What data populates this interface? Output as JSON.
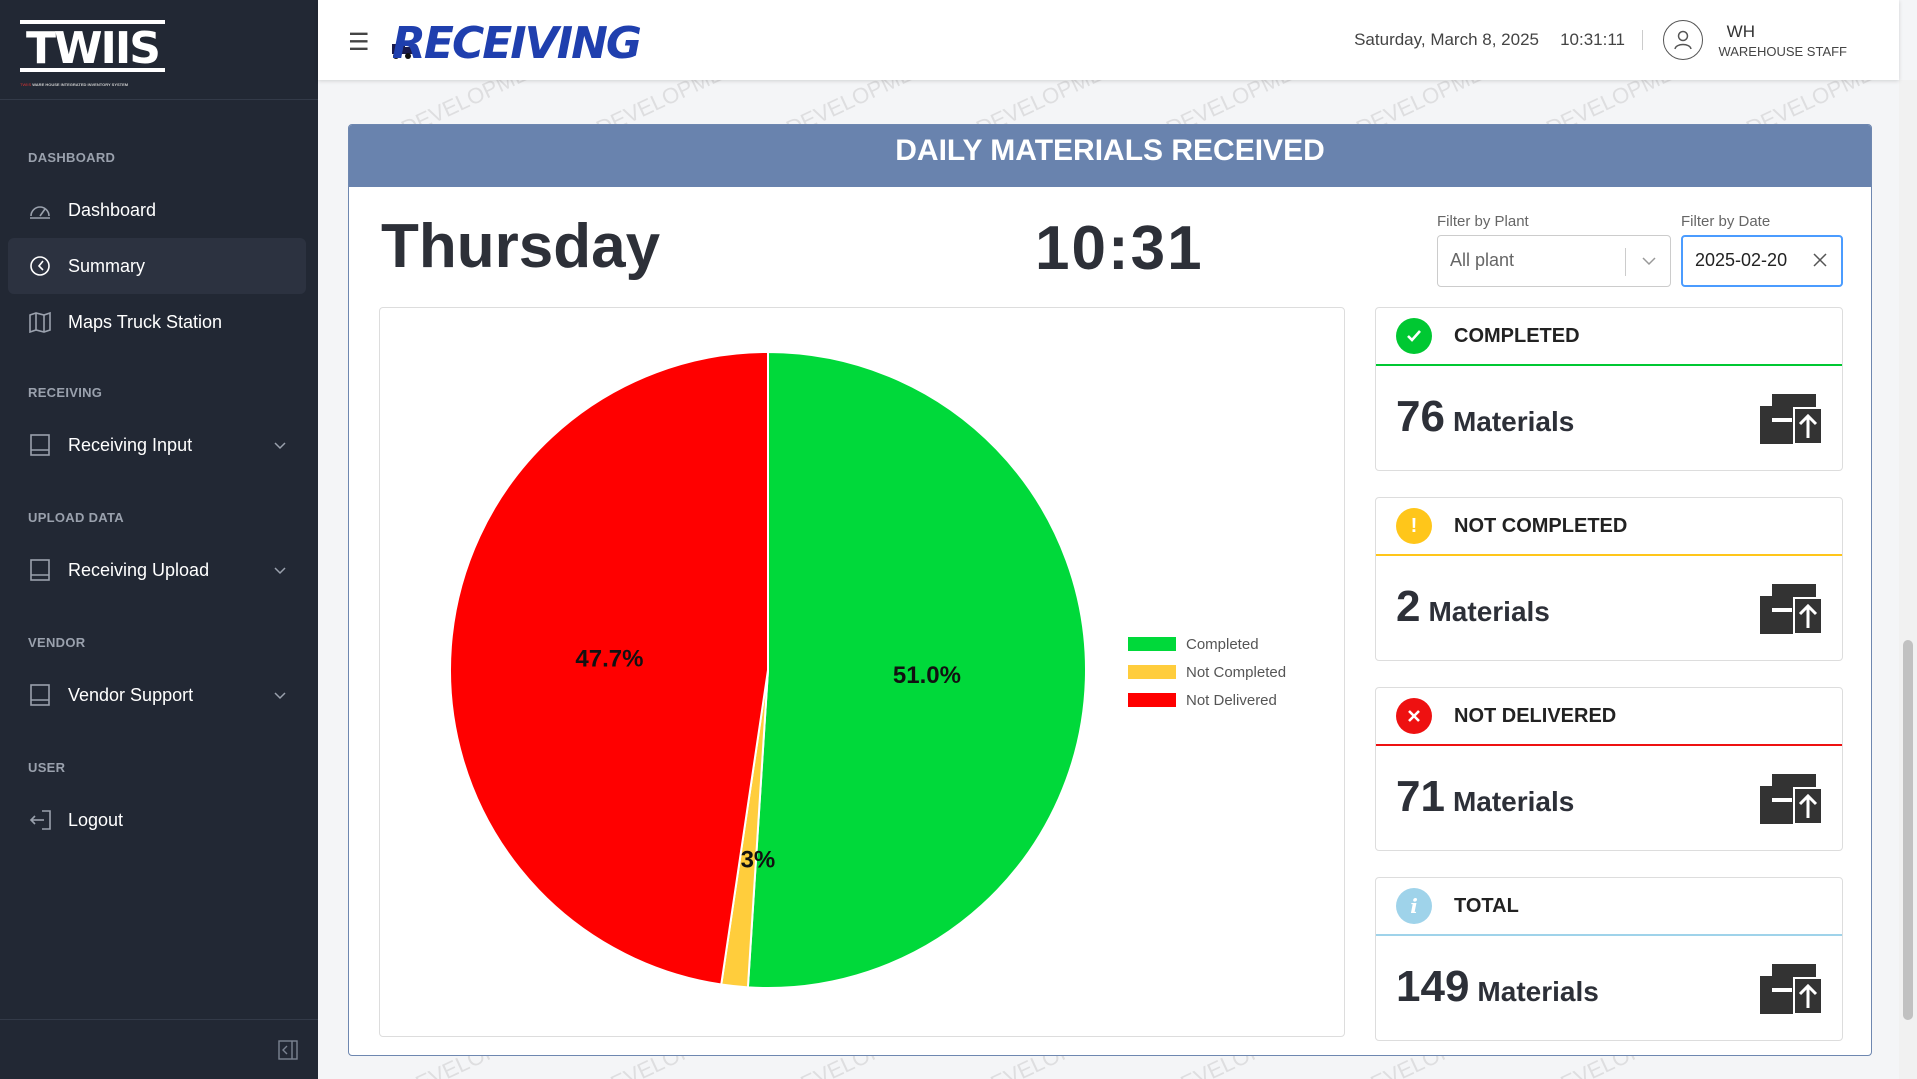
{
  "sidebar": {
    "logo_text": "TWIIS",
    "logo_subtitle_red": "TWIIS",
    "logo_subtitle": "WARE HOUSE INTEGRATED INVENTORY SYSTEM",
    "sections": [
      {
        "title": "DASHBOARD",
        "items": [
          {
            "label": "Dashboard",
            "icon": "gauge-icon"
          },
          {
            "label": "Summary",
            "icon": "clock-icon",
            "active": true
          },
          {
            "label": "Maps Truck Station",
            "icon": "map-icon"
          }
        ]
      },
      {
        "title": "RECEIVING",
        "items": [
          {
            "label": "Receiving Input",
            "icon": "tablet-icon",
            "expandable": true
          }
        ]
      },
      {
        "title": "UPLOAD DATA",
        "items": [
          {
            "label": "Receiving Upload",
            "icon": "tablet-icon",
            "expandable": true
          }
        ]
      },
      {
        "title": "VENDOR",
        "items": [
          {
            "label": "Vendor Support",
            "icon": "tablet-icon",
            "expandable": true
          }
        ]
      },
      {
        "title": "USER",
        "items": [
          {
            "label": "Logout",
            "icon": "logout-icon"
          }
        ]
      }
    ]
  },
  "header": {
    "brand": "RECEIVING",
    "date": "Saturday, March 8, 2025",
    "time": "10:31:11",
    "user_name": "WH",
    "user_role": "WAREHOUSE STAFF"
  },
  "watermark_text": "DEVELOPMENT",
  "panel": {
    "title": "DAILY MATERIALS RECEIVED",
    "day": "Thursday",
    "clock": "10:31",
    "filter_plant_label": "Filter by Plant",
    "filter_plant_value": "All plant",
    "filter_date_label": "Filter by Date",
    "filter_date_value": "2025-02-20"
  },
  "chart_data": {
    "type": "pie",
    "title": "",
    "labels": [
      "Completed",
      "Not Completed",
      "Not Delivered"
    ],
    "values": [
      76,
      2,
      71
    ],
    "percent_labels": [
      "51.0%",
      "1.3%",
      "47.7%"
    ],
    "colors": [
      "#00d93a",
      "#ffcd3c",
      "#ff0000"
    ],
    "legend_position": "right"
  },
  "cards": [
    {
      "title": "COMPLETED",
      "value": "76",
      "unit": "Materials",
      "color": "#00c832",
      "icon": "check-icon"
    },
    {
      "title": "NOT COMPLETED",
      "value": "2",
      "unit": "Materials",
      "color": "#ffc61a",
      "icon": "exclamation-icon"
    },
    {
      "title": "NOT DELIVERED",
      "value": "71",
      "unit": "Materials",
      "color": "#ee1111",
      "icon": "x-icon"
    },
    {
      "title": "TOTAL",
      "value": "149",
      "unit": "Materials",
      "color": "#9fd3ea",
      "icon": "info-icon"
    }
  ]
}
